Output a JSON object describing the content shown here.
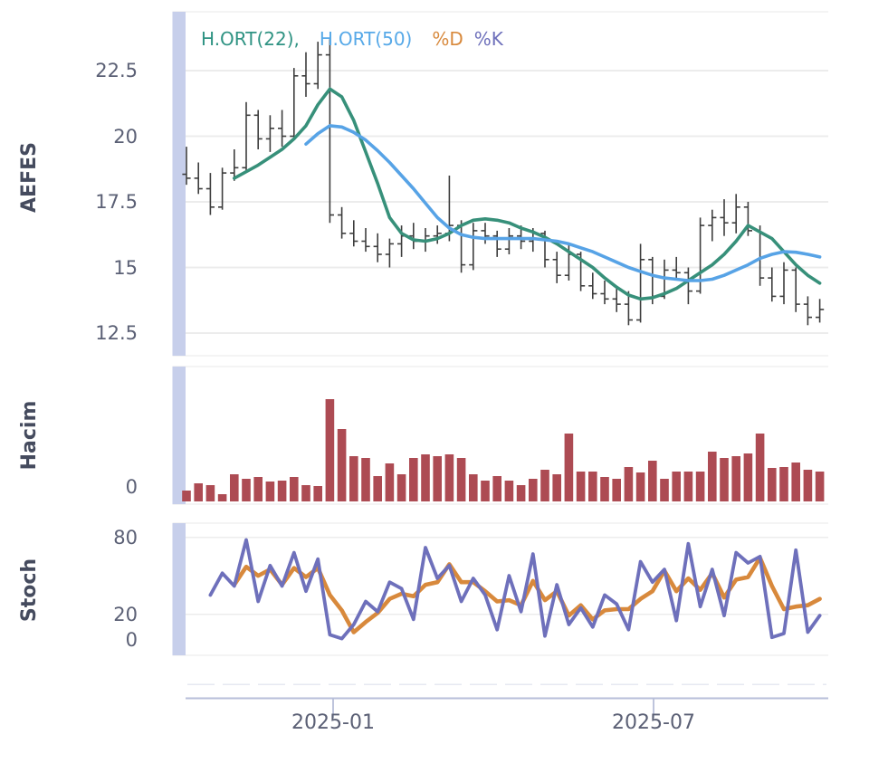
{
  "figure": {
    "symbol": "AEFES"
  },
  "legend": {
    "items": [
      {
        "label": "H.ORT(22),",
        "color": "#2f9383"
      },
      {
        "label": "H.ORT(50)",
        "color": "#57a9e8"
      },
      {
        "label": "%D",
        "color": "#d8893c"
      },
      {
        "label": "%K",
        "color": "#6e70bb"
      }
    ]
  },
  "panels": {
    "price": {
      "ylabel": "AEFES",
      "yticks": [
        "22.5",
        "20",
        "17.5",
        "15",
        "12.5"
      ]
    },
    "volume": {
      "ylabel": "Hacim",
      "yticks": [
        "0"
      ]
    },
    "stoch": {
      "ylabel": "Stoch",
      "yticks": [
        "80",
        "20",
        "0"
      ]
    }
  },
  "xaxis": {
    "ticks": [
      "2025-01",
      "2025-07"
    ]
  },
  "chart_data": [
    {
      "type": "ohlc",
      "panel": "price",
      "title": "",
      "ylabel": "AEFES",
      "ylim": [
        12.0,
        24.3
      ],
      "yticks": [
        22.5,
        20,
        17.5,
        15,
        12.5
      ],
      "x_range": [
        "2024-10",
        "2025-10"
      ],
      "frequency": "weekly",
      "bar_color": "#3d3d3d",
      "ohlc": [
        [
          18.55,
          19.6,
          18.15,
          18.4
        ],
        [
          18.4,
          19.0,
          17.8,
          18.0
        ],
        [
          18.0,
          18.6,
          17.0,
          17.3
        ],
        [
          17.3,
          18.8,
          17.2,
          18.6
        ],
        [
          18.6,
          19.5,
          18.3,
          18.8
        ],
        [
          18.8,
          21.3,
          18.7,
          20.8
        ],
        [
          20.8,
          21.0,
          19.5,
          19.9
        ],
        [
          19.9,
          20.8,
          19.4,
          20.3
        ],
        [
          20.3,
          21.0,
          19.6,
          20.0
        ],
        [
          20.0,
          22.6,
          19.9,
          22.3
        ],
        [
          22.3,
          23.2,
          21.5,
          22.0
        ],
        [
          22.0,
          23.6,
          21.8,
          23.1
        ],
        [
          23.1,
          23.7,
          16.7,
          17.0
        ],
        [
          17.0,
          17.3,
          16.1,
          16.3
        ],
        [
          16.3,
          16.8,
          15.8,
          16.0
        ],
        [
          16.0,
          16.5,
          15.6,
          15.8
        ],
        [
          15.8,
          16.3,
          15.2,
          15.5
        ],
        [
          15.5,
          16.1,
          15.0,
          15.9
        ],
        [
          15.9,
          16.6,
          15.4,
          16.2
        ],
        [
          16.2,
          16.7,
          15.7,
          16.0
        ],
        [
          16.0,
          16.5,
          15.6,
          16.2
        ],
        [
          16.2,
          16.6,
          15.9,
          16.3
        ],
        [
          16.3,
          18.5,
          16.0,
          16.6
        ],
        [
          16.6,
          16.8,
          14.8,
          15.1
        ],
        [
          15.1,
          16.7,
          14.9,
          16.4
        ],
        [
          16.4,
          16.7,
          15.9,
          16.2
        ],
        [
          16.2,
          16.4,
          15.4,
          15.7
        ],
        [
          15.7,
          16.5,
          15.5,
          16.2
        ],
        [
          16.2,
          16.6,
          15.7,
          16.0
        ],
        [
          16.0,
          16.5,
          15.6,
          16.3
        ],
        [
          16.3,
          16.4,
          15.0,
          15.3
        ],
        [
          15.3,
          15.6,
          14.4,
          14.7
        ],
        [
          14.7,
          15.9,
          14.5,
          15.5
        ],
        [
          15.5,
          15.6,
          14.1,
          14.3
        ],
        [
          14.3,
          14.8,
          13.8,
          14.0
        ],
        [
          14.0,
          14.5,
          13.6,
          13.8
        ],
        [
          13.8,
          14.2,
          13.3,
          13.6
        ],
        [
          13.6,
          14.1,
          12.8,
          13.0
        ],
        [
          13.0,
          15.9,
          12.9,
          15.3
        ],
        [
          15.3,
          15.4,
          13.6,
          13.9
        ],
        [
          13.9,
          15.3,
          13.8,
          14.9
        ],
        [
          14.9,
          15.4,
          14.5,
          14.8
        ],
        [
          14.8,
          15.0,
          13.6,
          14.1
        ],
        [
          14.1,
          16.9,
          14.0,
          16.6
        ],
        [
          16.6,
          17.2,
          16.0,
          16.9
        ],
        [
          16.9,
          17.6,
          16.2,
          16.7
        ],
        [
          16.7,
          17.8,
          16.3,
          17.3
        ],
        [
          17.3,
          17.5,
          16.2,
          16.4
        ],
        [
          16.4,
          16.6,
          14.3,
          14.6
        ],
        [
          14.6,
          15.0,
          13.7,
          13.9
        ],
        [
          13.9,
          15.2,
          13.6,
          14.9
        ],
        [
          14.9,
          15.0,
          13.3,
          13.6
        ],
        [
          13.6,
          13.9,
          12.8,
          13.1
        ],
        [
          13.1,
          13.8,
          12.9,
          13.4
        ]
      ],
      "series": [
        {
          "name": "H.ORT(22)",
          "color": "#37907a",
          "values": [
            null,
            null,
            null,
            null,
            18.4,
            18.65,
            18.9,
            19.2,
            19.5,
            19.9,
            20.4,
            21.2,
            21.8,
            21.5,
            20.6,
            19.4,
            18.2,
            16.9,
            16.3,
            16.05,
            16.0,
            16.1,
            16.3,
            16.6,
            16.8,
            16.85,
            16.8,
            16.7,
            16.5,
            16.35,
            16.15,
            15.9,
            15.6,
            15.3,
            15.0,
            14.6,
            14.25,
            13.95,
            13.8,
            13.85,
            14.0,
            14.2,
            14.5,
            14.8,
            15.1,
            15.5,
            16.0,
            16.6,
            16.35,
            16.1,
            15.6,
            15.1,
            14.7,
            14.4
          ]
        },
        {
          "name": "H.ORT(50)",
          "color": "#57a3e6",
          "values": [
            null,
            null,
            null,
            null,
            null,
            null,
            null,
            null,
            null,
            null,
            19.7,
            20.1,
            20.4,
            20.35,
            20.15,
            19.85,
            19.45,
            19.0,
            18.5,
            18.0,
            17.45,
            16.9,
            16.5,
            16.25,
            16.15,
            16.1,
            16.1,
            16.1,
            16.1,
            16.1,
            16.05,
            16.0,
            15.9,
            15.75,
            15.6,
            15.4,
            15.2,
            15.0,
            14.85,
            14.7,
            14.6,
            14.55,
            14.5,
            14.5,
            14.55,
            14.7,
            14.9,
            15.1,
            15.35,
            15.5,
            15.6,
            15.58,
            15.5,
            15.4
          ]
        }
      ],
      "xticks": [
        {
          "label": "2025-01",
          "bar_index": 12.3
        },
        {
          "label": "2025-07",
          "bar_index": 39.1
        }
      ]
    },
    {
      "type": "bar",
      "panel": "volume",
      "ylabel": "Hacim",
      "yticks": [
        0
      ],
      "color": "#ad4b53",
      "values": [
        12,
        20,
        18,
        8,
        30,
        25,
        27,
        22,
        23,
        27,
        18,
        17,
        113,
        80,
        50,
        48,
        28,
        42,
        30,
        48,
        52,
        50,
        52,
        48,
        30,
        23,
        28,
        23,
        18,
        25,
        35,
        30,
        75,
        33,
        33,
        27,
        25,
        38,
        32,
        45,
        25,
        33,
        33,
        33,
        55,
        48,
        50,
        53,
        75,
        37,
        38,
        43,
        35,
        33
      ]
    },
    {
      "type": "line",
      "panel": "stoch",
      "ylabel": "Stoch",
      "ylim": [
        -12,
        91
      ],
      "yticks": [
        80,
        20,
        0
      ],
      "series": [
        {
          "name": "%D",
          "color": "#d8893c",
          "values": [
            null,
            null,
            null,
            null,
            43,
            57,
            50,
            55,
            43,
            56,
            49,
            56,
            35,
            23,
            6,
            14,
            21,
            32,
            36,
            34,
            43,
            45,
            59,
            45,
            45,
            38,
            30,
            31,
            27,
            46,
            31,
            38,
            19,
            27,
            16,
            23,
            24,
            24,
            32,
            38,
            54,
            38,
            48,
            39,
            52,
            33,
            47,
            49,
            64,
            42,
            24,
            26,
            27,
            32
          ]
        },
        {
          "name": "%K",
          "color": "#6e70bb",
          "values": [
            null,
            null,
            35,
            52,
            42,
            78,
            30,
            58,
            42,
            68,
            38,
            63,
            4,
            1,
            12,
            30,
            22,
            45,
            40,
            16,
            72,
            48,
            58,
            30,
            48,
            35,
            8,
            50,
            22,
            67,
            3,
            43,
            12,
            25,
            10,
            35,
            28,
            8,
            61,
            45,
            55,
            15,
            75,
            26,
            55,
            19,
            68,
            60,
            65,
            2,
            5,
            70,
            6,
            19
          ]
        }
      ]
    }
  ]
}
